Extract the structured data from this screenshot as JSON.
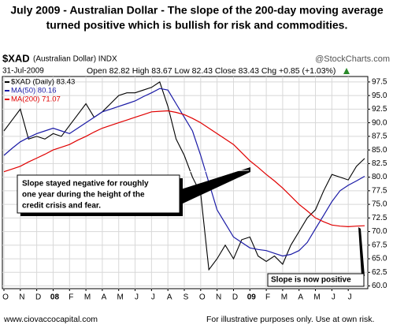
{
  "chart_data": {
    "type": "line",
    "title": [
      "July 2009 - Australian Dollar - The slope of the 200-day moving average",
      "turned positive which is bullish for risk and commodities."
    ],
    "symbol": "$XAD",
    "symbol_desc": "(Australian Dollar) INDX",
    "source": "@StockCharts.com",
    "date": "31-Jul-2009",
    "quote": "Open 82.82  High 83.67  Low 82.43  Close 83.43  Chg +0.85 (+1.03%)",
    "categories": [
      "O",
      null,
      "N",
      null,
      "D",
      null,
      "08",
      null,
      "F",
      null,
      "M",
      null,
      "A",
      null,
      "M",
      null,
      "J",
      null,
      "J",
      null,
      "A",
      null,
      "S",
      null,
      "O",
      null,
      "N",
      null,
      "D",
      null,
      "09",
      null,
      "F",
      null,
      "M",
      null,
      "A",
      null,
      "M",
      null,
      "J",
      null,
      "J",
      null,
      null
    ],
    "series": [
      {
        "name": "$XAD (Daily) 83.43",
        "color": "#000000",
        "values": [
          88.5,
          90.5,
          92.5,
          87,
          87.5,
          87,
          88,
          87.5,
          89.5,
          91.5,
          93.5,
          91,
          92,
          93.5,
          95,
          95.5,
          95.5,
          96,
          96.5,
          97.5,
          93,
          87,
          84,
          80,
          77,
          63,
          65,
          67.5,
          65,
          68.5,
          69,
          65.5,
          64.5,
          65.5,
          64,
          67.5,
          70,
          72.5,
          74,
          77.5,
          80.5,
          80,
          79.5,
          82,
          83.43
        ]
      },
      {
        "name": "MA(50) 80.16",
        "color": "#1a1aa6",
        "values": [
          84,
          85.3,
          86.5,
          87.3,
          88,
          88.5,
          89,
          88.5,
          88,
          89,
          90,
          91,
          92,
          92.5,
          93,
          93.5,
          94,
          94.8,
          95.5,
          96.3,
          96,
          93.5,
          91,
          88.5,
          84,
          79,
          74,
          71.5,
          69,
          68,
          67,
          66.7,
          66.5,
          66,
          65.5,
          65.8,
          66.5,
          68,
          70.5,
          73,
          75.5,
          77.5,
          78.5,
          79.3,
          80.16
        ]
      },
      {
        "name": "MA(200) 71.07",
        "color": "#e00000",
        "values": [
          81,
          81.5,
          82,
          82.8,
          83.5,
          84.2,
          85,
          85.5,
          86,
          86.8,
          87.5,
          88.3,
          89,
          89.5,
          90,
          90.5,
          91,
          91.5,
          92,
          92.1,
          92.2,
          91.9,
          91.5,
          90.8,
          90,
          89,
          88,
          87,
          86,
          84.5,
          83,
          81.8,
          80.5,
          79.3,
          78,
          76.5,
          75,
          73.8,
          72.5,
          71.8,
          71.2,
          71,
          70.9,
          71,
          71.07
        ]
      }
    ],
    "ylim": [
      59.5,
      98.5
    ],
    "yticks": [
      {
        "value": 60,
        "label": "60.0"
      },
      62.5,
      {
        "value": 65,
        "label": "65.0"
      },
      67.5,
      {
        "value": 70,
        "label": "70.0"
      },
      72.5,
      {
        "value": 75,
        "label": "75.0"
      },
      77.5,
      {
        "value": 80,
        "label": "80.0"
      },
      82.5,
      {
        "value": 85,
        "label": "85.0"
      },
      87.5,
      {
        "value": 90,
        "label": "90.0"
      },
      92.5,
      {
        "value": 95,
        "label": "95.0"
      },
      97.5
    ],
    "grid": true,
    "annotations": [
      {
        "lines": [
          "Slope stayed negative for roughly",
          "one year during the height of the",
          "credit crisis and fear."
        ],
        "color": "#cc0000"
      },
      {
        "lines": [
          "Slope is now positive"
        ],
        "color": "#cc0000"
      }
    ],
    "footer_left": "www.ciovaccocapital.com",
    "footer_right": "For illustrative purposes only.  Use at own risk."
  }
}
